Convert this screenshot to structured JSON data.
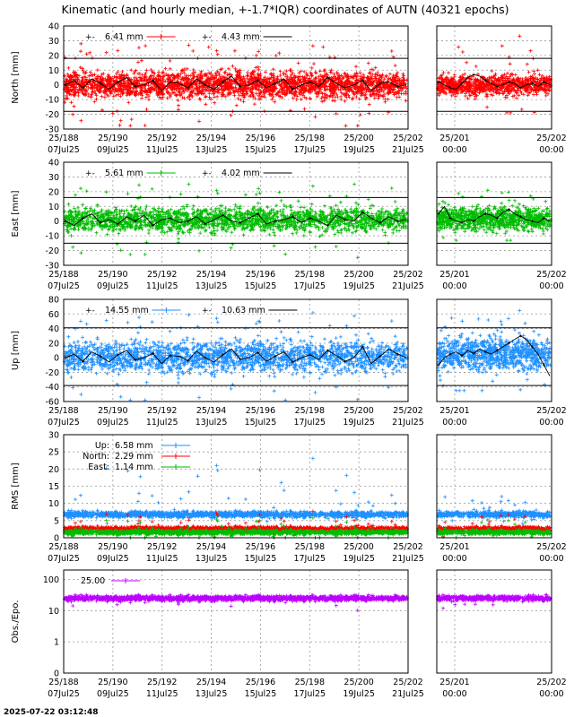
{
  "title": "Kinematic (and hourly median, +-1.7*IQR) coordinates of AUTN (40321 epochs)",
  "timestamp": "2025-07-22 03:12:48",
  "colors": {
    "north": "#ff0000",
    "east": "#00bb00",
    "up": "#1e90ff",
    "obs": "#bb00ff",
    "median": "#000000",
    "grid": "#999999"
  },
  "x_ticks_main": [
    {
      "top": "25/188",
      "bottom": "07Jul25"
    },
    {
      "top": "25/190",
      "bottom": "09Jul25"
    },
    {
      "top": "25/192",
      "bottom": "11Jul25"
    },
    {
      "top": "25/194",
      "bottom": "13Jul25"
    },
    {
      "top": "25/196",
      "bottom": "15Jul25"
    },
    {
      "top": "25/198",
      "bottom": "17Jul25"
    },
    {
      "top": "25/200",
      "bottom": "19Jul25"
    },
    {
      "top": "25/202",
      "bottom": "21Jul25"
    }
  ],
  "x_ticks_zoom": [
    {
      "top": "25/201",
      "bottom": "00:00"
    },
    {
      "top": "25/202",
      "bottom": "00:00"
    }
  ],
  "chart_data": [
    {
      "type": "scatter",
      "panel": "north",
      "ylabel": "North [mm]",
      "ylim": [
        -30,
        40
      ],
      "yticks": [
        -30,
        -20,
        -10,
        0,
        10,
        20,
        30,
        40
      ],
      "iqr_bounds": [
        -18,
        18
      ],
      "legend": [
        {
          "text": "6.41 mm",
          "kind": "scatter"
        },
        {
          "text": "4.43 mm",
          "kind": "median"
        }
      ],
      "band_main": [
        -12,
        12
      ],
      "band_zoom": [
        -9,
        9
      ],
      "spike_main": [
        -28,
        28
      ],
      "spike_zoom": [
        -19,
        35
      ],
      "median_main": [
        0,
        3,
        -2,
        4,
        1,
        -3,
        2,
        5,
        -1,
        0,
        3,
        -4,
        2,
        1,
        -2,
        4,
        0,
        -3,
        2,
        6,
        -1,
        0,
        3,
        -2,
        1,
        4,
        -3,
        0,
        2,
        -1,
        5,
        1,
        -2,
        0,
        3,
        -4,
        1,
        2,
        -1,
        0
      ],
      "median_zoom": [
        2,
        0,
        -2,
        -3,
        1,
        5,
        7,
        6,
        3,
        1,
        -1,
        0,
        2,
        1,
        -2,
        0,
        1,
        -1,
        2,
        0
      ]
    },
    {
      "type": "scatter",
      "panel": "east",
      "ylabel": "East [mm]",
      "ylim": [
        -30,
        40
      ],
      "yticks": [
        -30,
        -20,
        -10,
        0,
        10,
        20,
        30,
        40
      ],
      "iqr_bounds": [
        -15,
        16
      ],
      "legend": [
        {
          "text": "5.61 mm",
          "kind": "scatter"
        },
        {
          "text": "4.02 mm",
          "kind": "median"
        }
      ],
      "band_main": [
        -10,
        12
      ],
      "band_zoom": [
        -9,
        12
      ],
      "spike_main": [
        -25,
        25
      ],
      "spike_zoom": [
        -13,
        25
      ],
      "median_main": [
        0,
        -3,
        2,
        5,
        -1,
        1,
        -2,
        3,
        0,
        4,
        -3,
        1,
        2,
        -1,
        0,
        3,
        -2,
        1,
        4,
        0,
        -1,
        2,
        5,
        -2,
        0,
        1,
        3,
        -1,
        2,
        0,
        -3,
        4,
        1,
        0,
        6,
        2,
        -1,
        3,
        0,
        1
      ],
      "median_zoom": [
        5,
        10,
        2,
        0,
        -1,
        1,
        0,
        3,
        5,
        4,
        2,
        6,
        8,
        5,
        3,
        1,
        0,
        -1,
        2,
        0
      ]
    },
    {
      "type": "scatter",
      "panel": "up",
      "ylabel": "Up [mm]",
      "ylim": [
        -60,
        80
      ],
      "yticks": [
        -60,
        -40,
        -20,
        0,
        20,
        40,
        60,
        80
      ],
      "iqr_bounds": [
        -38,
        41
      ],
      "legend": [
        {
          "text": "14.55 mm",
          "kind": "scatter"
        },
        {
          "text": "10.63 mm",
          "kind": "median"
        }
      ],
      "band_main": [
        -27,
        30
      ],
      "band_zoom": [
        -25,
        35
      ],
      "spike_main": [
        -58,
        65
      ],
      "spike_zoom": [
        -45,
        68
      ],
      "median_main": [
        0,
        5,
        -5,
        8,
        2,
        -6,
        4,
        10,
        -3,
        0,
        6,
        -8,
        3,
        2,
        -4,
        9,
        0,
        -6,
        4,
        12,
        -2,
        0,
        7,
        -5,
        2,
        8,
        -6,
        0,
        4,
        -2,
        10,
        3,
        -5,
        0,
        15,
        -8,
        2,
        12,
        5,
        0
      ],
      "median_zoom": [
        -10,
        0,
        5,
        8,
        3,
        10,
        6,
        12,
        8,
        5,
        10,
        15,
        20,
        25,
        30,
        25,
        15,
        5,
        -10,
        -25
      ]
    },
    {
      "type": "scatter",
      "panel": "rms",
      "ylabel": "RMS [mm]",
      "ylim": [
        0,
        30
      ],
      "yticks": [
        0,
        5,
        10,
        15,
        20,
        25,
        30
      ],
      "legend": [
        {
          "name": "Up:",
          "text": "6.58 mm",
          "series": "up"
        },
        {
          "name": "North:",
          "text": "2.29 mm",
          "series": "north"
        },
        {
          "name": "East:",
          "text": "1.14 mm",
          "series": "east"
        }
      ],
      "up_level": 6.8,
      "north_level": 2.6,
      "east_level": 1.6,
      "up_spike_max": 24
    },
    {
      "type": "scatter",
      "panel": "obs",
      "ylabel": "Obs./Epo.",
      "yscale": "log",
      "ylim": [
        0.1,
        200
      ],
      "yticks": [
        {
          "v": 0.1,
          "label": "0"
        },
        {
          "v": 1,
          "label": "1"
        },
        {
          "v": 10,
          "label": "10"
        },
        {
          "v": 100,
          "label": "100"
        }
      ],
      "legend": [
        {
          "text": "25.00",
          "series": "obs"
        }
      ],
      "level": 25
    }
  ]
}
